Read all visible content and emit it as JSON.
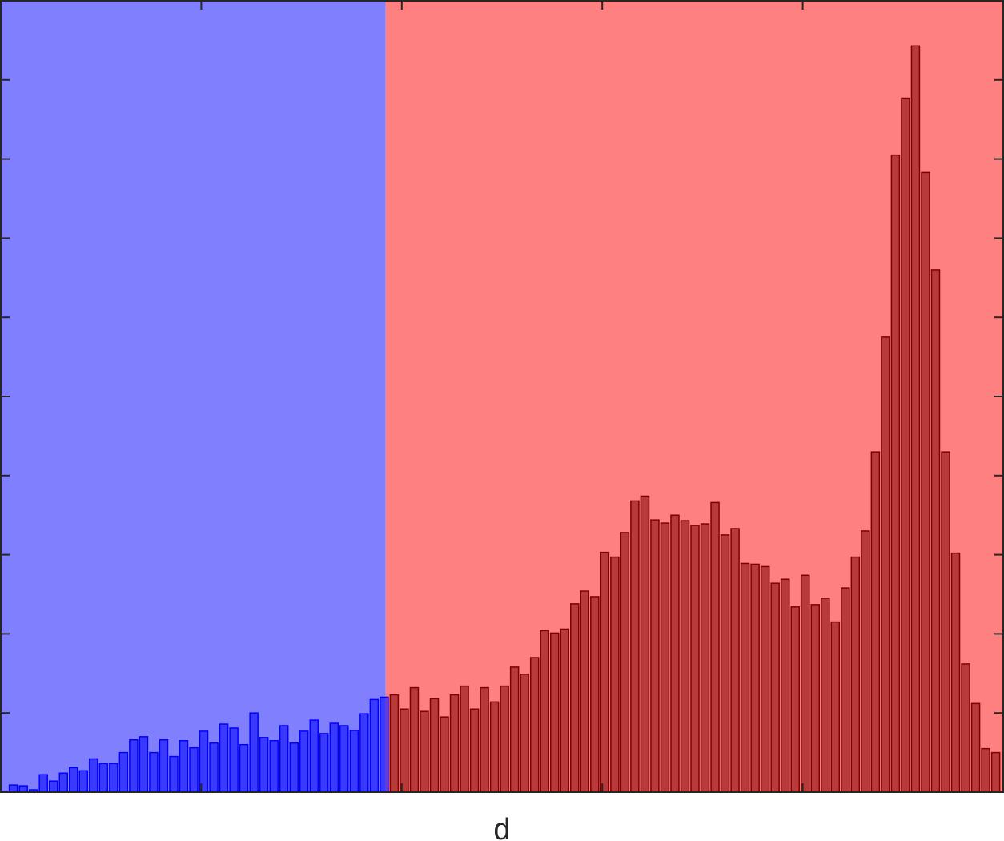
{
  "chart_data": {
    "type": "bar",
    "title": "",
    "xlabel": "d",
    "ylabel": "",
    "xlim": [
      0,
      100
    ],
    "ylim": [
      0,
      10
    ],
    "x_ticks": [
      20,
      40,
      60,
      80
    ],
    "y_ticks": [
      1,
      2,
      3,
      4,
      5,
      6,
      7,
      8,
      9
    ],
    "x_tick_labels_shown": false,
    "y_tick_labels_shown": false,
    "grid": false,
    "regions": [
      {
        "x_start": 0,
        "x_end": 38.4,
        "color": "#8080ff"
      },
      {
        "x_start": 38.4,
        "x_end": 100,
        "color": "#ff8080"
      }
    ],
    "bin_centers": [
      0.25,
      1.25,
      2.25,
      3.25,
      4.25,
      5.25,
      6.25,
      7.25,
      8.25,
      9.25,
      10.25,
      11.25,
      12.25,
      13.25,
      14.25,
      15.25,
      16.25,
      17.25,
      18.25,
      19.25,
      20.25,
      21.25,
      22.25,
      23.25,
      24.25,
      25.25,
      26.25,
      27.25,
      28.25,
      29.25,
      30.25,
      31.25,
      32.25,
      33.25,
      34.25,
      35.25,
      36.25,
      37.25,
      38.25,
      39.25,
      40.25,
      41.25,
      42.25,
      43.25,
      44.25,
      45.25,
      46.25,
      47.25,
      48.25,
      49.25,
      50.25,
      51.25,
      52.25,
      53.25,
      54.25,
      55.25,
      56.25,
      57.25,
      58.25,
      59.25,
      60.25,
      61.25,
      62.25,
      63.25,
      64.25,
      65.25,
      66.25,
      67.25,
      68.25,
      69.25,
      70.25,
      71.25,
      72.25,
      73.25,
      74.25,
      75.25,
      76.25,
      77.25,
      78.25,
      79.25,
      80.25,
      81.25,
      82.25,
      83.25,
      84.25,
      85.25,
      86.25,
      87.25,
      88.25,
      89.25,
      90.25,
      91.25,
      92.25,
      93.25,
      94.25,
      95.25,
      96.25,
      97.25,
      98.25,
      99.25
    ],
    "bin_width": 0.8,
    "series": [
      {
        "color": "#0000ff",
        "values": [
          0.01,
          0.09,
          0.08,
          0.03,
          0.22,
          0.14,
          0.24,
          0.31,
          0.27,
          0.42,
          0.36,
          0.36,
          0.5,
          0.66,
          0.7,
          0.5,
          0.66,
          0.45,
          0.65,
          0.56,
          0.77,
          0.62,
          0.86,
          0.81,
          0.6,
          1.0,
          0.69,
          0.65,
          0.84,
          0.62,
          0.77,
          0.91,
          0.74,
          0.87,
          0.84,
          0.78,
          0.99,
          1.17,
          1.2
        ]
      },
      {
        "color": "#800000",
        "values": [
          1.23,
          1.05,
          1.32,
          1.02,
          1.18,
          0.95,
          1.23,
          1.34,
          1.05,
          1.32,
          1.14,
          1.34,
          1.58,
          1.49,
          1.7,
          2.04,
          2.01,
          2.06,
          2.38,
          2.54,
          2.47,
          3.03,
          2.97,
          3.28,
          3.68,
          3.74,
          3.44,
          3.4,
          3.5,
          3.43,
          3.37,
          3.39,
          3.66,
          3.25,
          3.33,
          2.89,
          2.88,
          2.85,
          2.64,
          2.69,
          2.34,
          2.74,
          2.37,
          2.45,
          2.15,
          2.58,
          2.97,
          3.3,
          4.3,
          5.75,
          8.05,
          8.77,
          9.43,
          7.83,
          6.6,
          4.3,
          3.02,
          1.62,
          1.12,
          0.55,
          0.5
        ]
      }
    ]
  }
}
